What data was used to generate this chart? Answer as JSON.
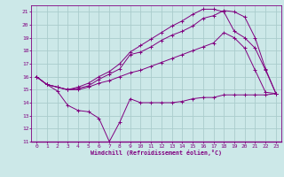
{
  "title": "",
  "xlabel": "Windchill (Refroidissement éolien,°C)",
  "ylabel": "",
  "background_color": "#cce8e8",
  "grid_color": "#aacccc",
  "line_color": "#800080",
  "xlim": [
    -0.5,
    23.5
  ],
  "ylim": [
    11,
    21.5
  ],
  "xticks": [
    0,
    1,
    2,
    3,
    4,
    5,
    6,
    7,
    8,
    9,
    10,
    11,
    12,
    13,
    14,
    15,
    16,
    17,
    18,
    19,
    20,
    21,
    22,
    23
  ],
  "yticks": [
    11,
    12,
    13,
    14,
    15,
    16,
    17,
    18,
    19,
    20,
    21
  ],
  "series": [
    {
      "x": [
        0,
        1,
        2,
        3,
        4,
        5,
        6,
        7,
        8,
        9,
        10,
        11,
        12,
        13,
        14,
        15,
        16,
        17,
        18,
        19,
        20,
        21,
        22,
        23
      ],
      "y": [
        16.0,
        15.4,
        14.9,
        13.8,
        13.4,
        13.3,
        12.8,
        11.0,
        12.5,
        14.3,
        14.0,
        14.0,
        14.0,
        14.0,
        14.1,
        14.3,
        14.4,
        14.4,
        14.6,
        14.6,
        14.6,
        14.6,
        14.6,
        14.7
      ]
    },
    {
      "x": [
        0,
        1,
        2,
        3,
        4,
        5,
        6,
        7,
        8,
        9,
        10,
        11,
        12,
        13,
        14,
        15,
        16,
        17,
        18,
        19,
        20,
        21,
        22,
        23
      ],
      "y": [
        16.0,
        15.4,
        15.2,
        15.0,
        15.0,
        15.2,
        15.5,
        15.7,
        16.0,
        16.3,
        16.5,
        16.8,
        17.1,
        17.4,
        17.7,
        18.0,
        18.3,
        18.6,
        19.4,
        19.0,
        18.2,
        16.5,
        14.8,
        14.7
      ]
    },
    {
      "x": [
        0,
        1,
        2,
        3,
        4,
        5,
        6,
        7,
        8,
        9,
        10,
        11,
        12,
        13,
        14,
        15,
        16,
        17,
        18,
        19,
        20,
        21,
        22,
        23
      ],
      "y": [
        16.0,
        15.4,
        15.2,
        15.0,
        15.1,
        15.3,
        15.8,
        16.2,
        16.6,
        17.7,
        17.9,
        18.3,
        18.8,
        19.2,
        19.5,
        19.9,
        20.5,
        20.7,
        21.1,
        21.0,
        20.6,
        19.0,
        16.6,
        14.7
      ]
    },
    {
      "x": [
        0,
        1,
        2,
        3,
        4,
        5,
        6,
        7,
        8,
        9,
        10,
        11,
        12,
        13,
        14,
        15,
        16,
        17,
        18,
        19,
        20,
        21,
        22,
        23
      ],
      "y": [
        16.0,
        15.4,
        15.2,
        15.0,
        15.2,
        15.5,
        16.0,
        16.4,
        17.0,
        17.9,
        18.4,
        18.9,
        19.4,
        19.9,
        20.3,
        20.8,
        21.2,
        21.2,
        21.0,
        19.5,
        19.0,
        18.2,
        16.5,
        14.7
      ]
    }
  ]
}
